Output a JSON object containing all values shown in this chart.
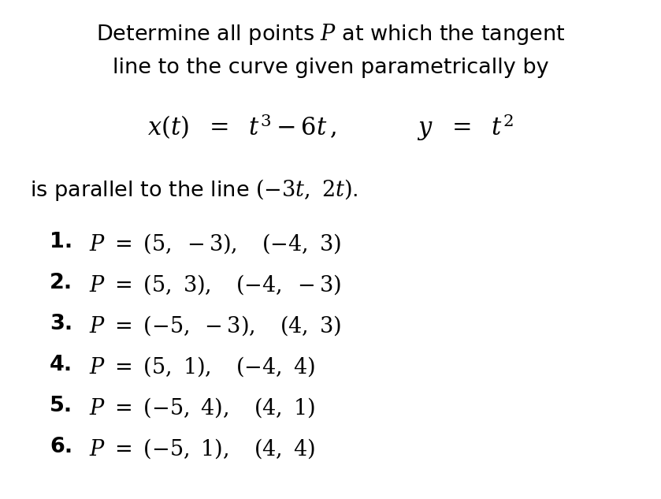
{
  "background_color": "#ffffff",
  "figsize": [
    8.39,
    6.33
  ],
  "dpi": 100,
  "font_size_title": 19.5,
  "font_size_eq": 22,
  "font_size_parallel": 19.5,
  "font_size_options": 19.5
}
